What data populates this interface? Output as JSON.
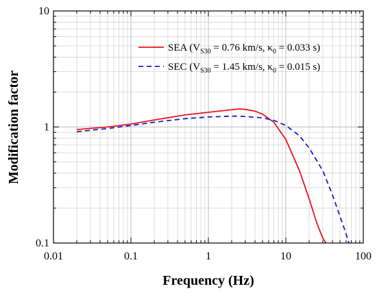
{
  "chart_data": {
    "type": "line",
    "xlabel": "Frequency (Hz)",
    "ylabel": "Modification factor",
    "xscale": "log",
    "yscale": "log",
    "xlim": [
      0.01,
      100
    ],
    "ylim": [
      0.1,
      10
    ],
    "grid": true,
    "legend_position": "top-right",
    "x_ticks": [
      "0.01",
      "0.1",
      "1",
      "10",
      "100"
    ],
    "y_ticks": [
      "0.1",
      "1",
      "10"
    ],
    "series": [
      {
        "name": "SEA (V_S30 = 0.76 km/s, κ_0 = 0.033 s)",
        "legend": {
          "prefix": "SEA (V",
          "sub1": "S30",
          "mid": " = 0.76 km/s, κ",
          "sub2": "0",
          "suffix": " = 0.033 s)"
        },
        "color": "#e8141c",
        "style": "solid",
        "x": [
          0.02,
          0.05,
          0.1,
          0.2,
          0.5,
          1,
          2,
          2.5,
          3,
          4,
          5,
          7,
          10,
          15,
          20,
          25,
          30,
          33
        ],
        "y": [
          0.95,
          1.0,
          1.06,
          1.15,
          1.27,
          1.34,
          1.41,
          1.43,
          1.42,
          1.37,
          1.29,
          1.1,
          0.78,
          0.42,
          0.24,
          0.15,
          0.11,
          0.1
        ]
      },
      {
        "name": "SEC (V_S30 = 1.45 km/s, κ_0 = 0.015 s)",
        "legend": {
          "prefix": "SEC (V",
          "sub1": "S30",
          "mid": " = 1.45 km/s, κ",
          "sub2": "0",
          "suffix": " = 0.015 s)"
        },
        "color": "#1a1acd",
        "style": "dashed",
        "x": [
          0.02,
          0.05,
          0.1,
          0.2,
          0.5,
          1,
          2,
          2.5,
          3,
          5,
          7,
          10,
          15,
          20,
          30,
          40,
          50,
          60,
          65
        ],
        "y": [
          0.91,
          0.97,
          1.03,
          1.1,
          1.18,
          1.22,
          1.24,
          1.24,
          1.23,
          1.2,
          1.14,
          1.03,
          0.84,
          0.66,
          0.42,
          0.26,
          0.17,
          0.12,
          0.1
        ]
      }
    ]
  }
}
